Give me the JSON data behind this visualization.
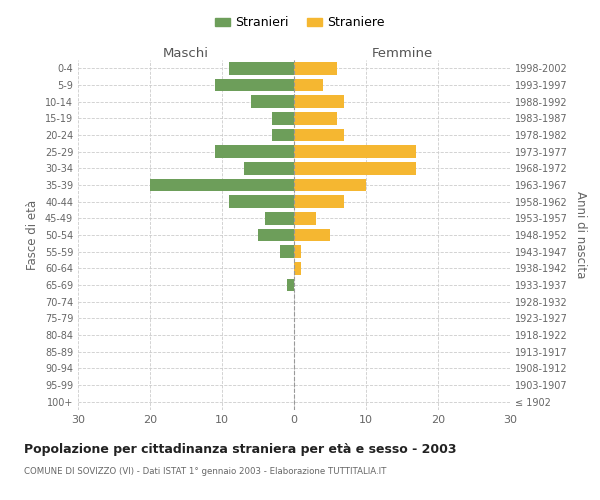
{
  "age_groups": [
    "100+",
    "95-99",
    "90-94",
    "85-89",
    "80-84",
    "75-79",
    "70-74",
    "65-69",
    "60-64",
    "55-59",
    "50-54",
    "45-49",
    "40-44",
    "35-39",
    "30-34",
    "25-29",
    "20-24",
    "15-19",
    "10-14",
    "5-9",
    "0-4"
  ],
  "birth_years": [
    "≤ 1902",
    "1903-1907",
    "1908-1912",
    "1913-1917",
    "1918-1922",
    "1923-1927",
    "1928-1932",
    "1933-1937",
    "1938-1942",
    "1943-1947",
    "1948-1952",
    "1953-1957",
    "1958-1962",
    "1963-1967",
    "1968-1972",
    "1973-1977",
    "1978-1982",
    "1983-1987",
    "1988-1992",
    "1993-1997",
    "1998-2002"
  ],
  "males": [
    0,
    0,
    0,
    0,
    0,
    0,
    0,
    1,
    0,
    2,
    5,
    4,
    9,
    20,
    7,
    11,
    3,
    3,
    6,
    11,
    9
  ],
  "females": [
    0,
    0,
    0,
    0,
    0,
    0,
    0,
    0,
    1,
    1,
    5,
    3,
    7,
    10,
    17,
    17,
    7,
    6,
    7,
    4,
    6
  ],
  "color_males": "#6d9e5a",
  "color_females": "#f5b731",
  "title": "Popolazione per cittadinanza straniera per età e sesso - 2003",
  "subtitle": "COMUNE DI SOVIZZO (VI) - Dati ISTAT 1° gennaio 2003 - Elaborazione TUTTITALIA.IT",
  "xlabel_left": "Maschi",
  "xlabel_right": "Femmine",
  "ylabel_left": "Fasce di età",
  "ylabel_right": "Anni di nascita",
  "legend_males": "Stranieri",
  "legend_females": "Straniere",
  "xlim": 30,
  "background_color": "#ffffff",
  "grid_color": "#cccccc"
}
